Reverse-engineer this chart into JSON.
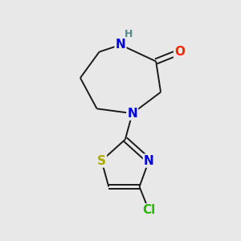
{
  "background_color": "#e8e8e8",
  "bond_color": "#1a1a1a",
  "bond_width": 1.4,
  "atom_colors": {
    "N": "#0000dd",
    "O": "#ff2200",
    "S": "#aaaa00",
    "Cl": "#22bb00",
    "H": "#558888",
    "C": "#1a1a1a"
  },
  "font_size_atoms": 11,
  "font_size_small": 9
}
